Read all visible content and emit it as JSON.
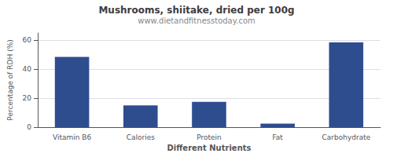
{
  "chart_data": {
    "type": "bar",
    "title": "Mushrooms, shiitake, dried per 100g",
    "subtitle": "www.dietandfitnesstoday.com",
    "xlabel": "Different Nutrients",
    "ylabel": "Percentage of RDH (%)",
    "categories": [
      "Vitamin B6",
      "Calories",
      "Protein",
      "Fat",
      "Carbohydrate"
    ],
    "values": [
      48.5,
      15.0,
      17.5,
      2.5,
      58.5
    ],
    "color": "#2e4d8e",
    "ylim": [
      0,
      65
    ],
    "yticks": [
      0,
      20,
      40,
      60
    ],
    "grid": true
  }
}
